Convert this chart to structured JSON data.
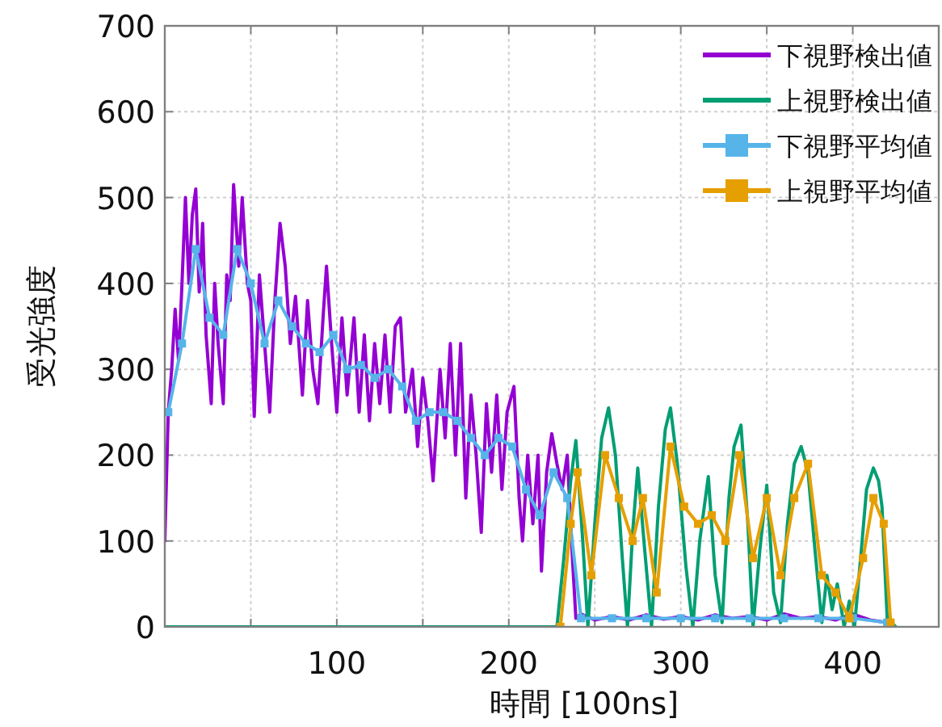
{
  "chart_data": {
    "type": "line",
    "xlabel": "時間 [100ns]",
    "ylabel": "受光強度",
    "xlim": [
      0,
      450
    ],
    "ylim": [
      0,
      700
    ],
    "xticks": [
      {
        "value": 50,
        "label": null
      },
      100,
      {
        "value": 150,
        "label": null
      },
      200,
      {
        "value": 250,
        "label": null
      },
      300,
      {
        "value": 350,
        "label": null
      },
      400
    ],
    "yticks": [
      0,
      100,
      200,
      300,
      400,
      500,
      600,
      700
    ],
    "grid": true,
    "legend": "top right",
    "series": [
      {
        "name": "下視野検出値",
        "color": "#9400d3",
        "marker": "none",
        "x": [
          0,
          2,
          4,
          6,
          8,
          10,
          12,
          14,
          16,
          18,
          20,
          22,
          24,
          27,
          29,
          31,
          34,
          36,
          38,
          40,
          43,
          45,
          48,
          50,
          52,
          55,
          58,
          61,
          64,
          67,
          70,
          73,
          76,
          80,
          83,
          86,
          89,
          92,
          94,
          97,
          100,
          103,
          106,
          110,
          113,
          116,
          119,
          122,
          125,
          128,
          131,
          134,
          137,
          140,
          144,
          147,
          150,
          153,
          156,
          160,
          163,
          166,
          169,
          172,
          175,
          178,
          181,
          184,
          187,
          190,
          193,
          196,
          199,
          203,
          206,
          208,
          211,
          214,
          217,
          219,
          222,
          225,
          228,
          231,
          234,
          237,
          239,
          242,
          250,
          260,
          270,
          280,
          290,
          300,
          310,
          320,
          330,
          340,
          350,
          360,
          370,
          380,
          390,
          400,
          410,
          420
        ],
        "values": [
          100,
          250,
          300,
          370,
          310,
          400,
          500,
          400,
          480,
          510,
          390,
          470,
          340,
          260,
          400,
          330,
          260,
          410,
          380,
          515,
          420,
          500,
          400,
          380,
          245,
          410,
          330,
          250,
          380,
          470,
          420,
          330,
          385,
          270,
          380,
          300,
          260,
          360,
          420,
          330,
          250,
          360,
          270,
          360,
          250,
          340,
          240,
          330,
          260,
          340,
          250,
          350,
          360,
          250,
          300,
          210,
          290,
          240,
          170,
          300,
          220,
          330,
          200,
          330,
          150,
          270,
          200,
          110,
          260,
          180,
          270,
          160,
          250,
          280,
          150,
          100,
          200,
          120,
          200,
          65,
          180,
          225,
          190,
          160,
          200,
          80,
          10,
          15,
          8,
          12,
          8,
          14,
          9,
          12,
          8,
          14,
          10,
          12,
          8,
          15,
          10,
          12,
          8,
          15,
          8,
          5
        ]
      },
      {
        "name": "上視野検出値",
        "color": "#009e73",
        "marker": "none",
        "x": [
          0,
          50,
          100,
          150,
          200,
          228,
          232,
          236,
          239,
          243,
          246,
          250,
          254,
          258,
          262,
          266,
          269,
          272,
          275,
          279,
          283,
          287,
          291,
          294,
          298,
          303,
          307,
          311,
          316,
          320,
          324,
          328,
          331,
          335,
          339,
          342,
          346,
          350,
          354,
          358,
          362,
          366,
          370,
          374,
          378,
          382,
          385,
          388,
          391,
          395,
          398,
          401,
          405,
          408,
          412,
          415,
          417,
          420,
          425
        ],
        "values": [
          0,
          0,
          0,
          0,
          0,
          0,
          80,
          170,
          217,
          100,
          0,
          120,
          220,
          255,
          200,
          80,
          0,
          110,
          185,
          90,
          0,
          140,
          230,
          255,
          190,
          70,
          0,
          100,
          175,
          60,
          5,
          150,
          210,
          235,
          120,
          0,
          90,
          165,
          40,
          5,
          120,
          190,
          210,
          180,
          90,
          5,
          60,
          20,
          50,
          0,
          30,
          0,
          90,
          160,
          185,
          170,
          140,
          10,
          0
        ]
      },
      {
        "name": "下視野平均値",
        "color": "#56b4e9",
        "marker": "square",
        "x": [
          2,
          10,
          18,
          26,
          34,
          42,
          50,
          58,
          66,
          74,
          82,
          90,
          98,
          106,
          114,
          122,
          130,
          138,
          146,
          154,
          162,
          170,
          178,
          186,
          194,
          202,
          210,
          218,
          226,
          234,
          242,
          260,
          280,
          300,
          320,
          340,
          360,
          380,
          400,
          420
        ],
        "values": [
          250,
          330,
          440,
          360,
          340,
          440,
          400,
          330,
          380,
          350,
          330,
          320,
          340,
          300,
          305,
          290,
          300,
          280,
          240,
          250,
          250,
          240,
          220,
          200,
          220,
          210,
          160,
          130,
          180,
          150,
          10,
          10,
          10,
          10,
          10,
          10,
          10,
          10,
          10,
          5
        ]
      },
      {
        "name": "上視野平均値",
        "color": "#e69f00",
        "marker": "square",
        "x": [
          230,
          236,
          240,
          248,
          256,
          264,
          272,
          278,
          286,
          294,
          302,
          310,
          318,
          326,
          334,
          342,
          350,
          358,
          366,
          374,
          382,
          390,
          398,
          406,
          412,
          418,
          422
        ],
        "values": [
          0,
          120,
          180,
          60,
          200,
          150,
          100,
          150,
          40,
          210,
          140,
          120,
          130,
          100,
          200,
          80,
          150,
          60,
          150,
          190,
          60,
          40,
          10,
          80,
          150,
          120,
          5
        ]
      }
    ]
  }
}
